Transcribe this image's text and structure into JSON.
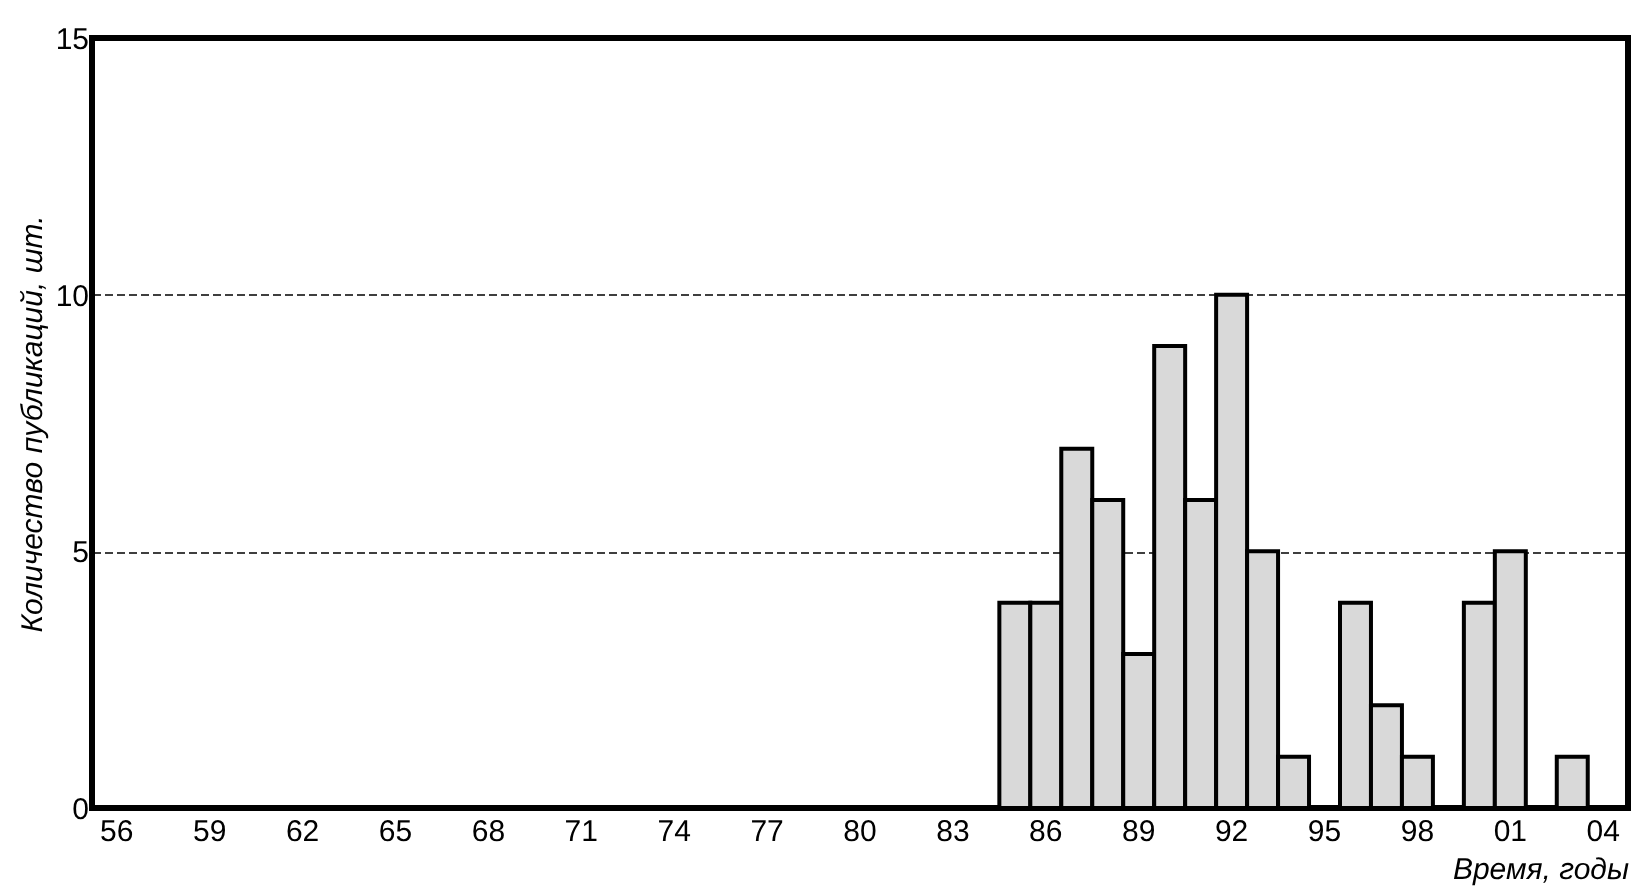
{
  "chart_data": {
    "type": "bar",
    "xlabel": "Время, годы",
    "ylabel": "Количество публикаций, шт.",
    "categories": [
      "56",
      null,
      null,
      "59",
      null,
      null,
      "62",
      null,
      null,
      "65",
      null,
      null,
      "68",
      null,
      null,
      "71",
      null,
      null,
      "74",
      null,
      null,
      "77",
      null,
      null,
      "80",
      null,
      null,
      "83",
      null,
      null,
      "86",
      null,
      null,
      "89",
      null,
      null,
      "92",
      null,
      null,
      "95",
      null,
      null,
      "98",
      null,
      null,
      "01",
      null,
      null,
      "04"
    ],
    "values": [
      0,
      0,
      0,
      0,
      0,
      0,
      0,
      0,
      0,
      0,
      0,
      0,
      0,
      0,
      0,
      0,
      0,
      0,
      0,
      0,
      0,
      0,
      0,
      0,
      0,
      0,
      0,
      0,
      0,
      4,
      4,
      7,
      6,
      3,
      9,
      6,
      10,
      5,
      1,
      0,
      4,
      2,
      1,
      0,
      4,
      5,
      0,
      1,
      0
    ],
    "color": "#d9d9d9",
    "ylim": [
      0,
      15
    ],
    "yticks": [
      0,
      5,
      10,
      15
    ],
    "grid": "y"
  }
}
